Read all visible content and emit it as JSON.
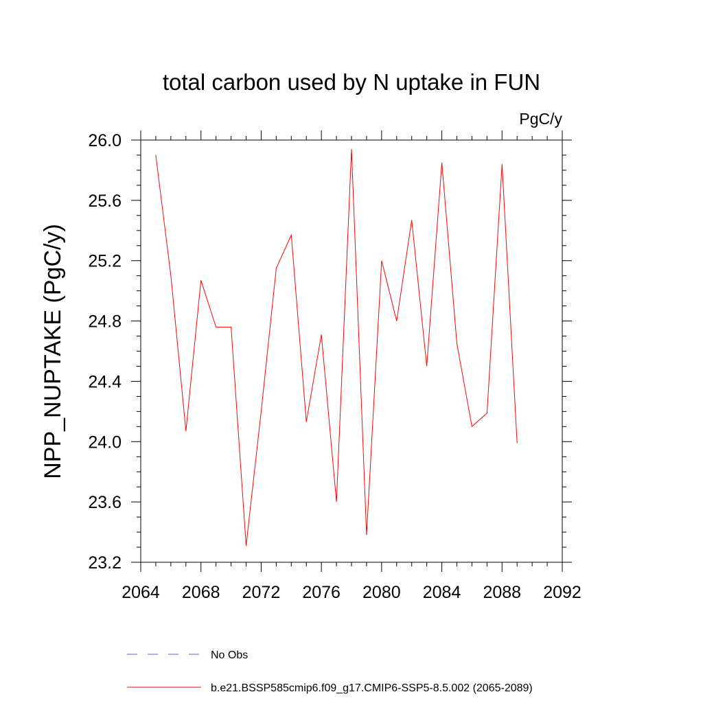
{
  "chart_data": {
    "type": "line",
    "title": "total carbon used by N uptake in FUN",
    "units_label": "PgC/y",
    "xlabel": "",
    "ylabel": "NPP_NUPTAKE  (PgC/y)",
    "xlim": [
      2064,
      2092
    ],
    "ylim": [
      23.2,
      26.0
    ],
    "x_ticks": [
      2064,
      2068,
      2072,
      2076,
      2080,
      2084,
      2088,
      2092
    ],
    "x_tick_labels": [
      "2064",
      "2068",
      "2072",
      "2076",
      "2080",
      "2084",
      "2088",
      "2092"
    ],
    "y_ticks": [
      23.2,
      23.6,
      24.0,
      24.4,
      24.8,
      25.2,
      25.6,
      26.0
    ],
    "y_tick_labels": [
      "23.2",
      "23.6",
      "24.0",
      "24.4",
      "24.8",
      "25.2",
      "25.6",
      "26.0"
    ],
    "grid": false,
    "legend_position": "bottom",
    "series": [
      {
        "name": "b.e21.BSSP585cmip6.f09_g17.CMIP6-SSP5-8.5.002 (2065-2089)",
        "color": "#ff0000",
        "style": "solid",
        "x": [
          2065,
          2066,
          2067,
          2068,
          2069,
          2070,
          2071,
          2072,
          2073,
          2074,
          2075,
          2076,
          2077,
          2078,
          2079,
          2080,
          2081,
          2082,
          2083,
          2084,
          2085,
          2086,
          2087,
          2088,
          2089
        ],
        "y": [
          25.9,
          25.1,
          24.07,
          25.07,
          24.76,
          24.76,
          23.31,
          24.2,
          25.15,
          25.37,
          24.13,
          24.71,
          23.6,
          25.94,
          23.38,
          25.2,
          24.8,
          25.47,
          24.5,
          25.85,
          24.65,
          24.1,
          24.19,
          25.84,
          23.99
        ]
      }
    ],
    "legend": [
      {
        "label": "No Obs",
        "color": "#6a5acd",
        "style": "dashed"
      },
      {
        "label": "b.e21.BSSP585cmip6.f09_g17.CMIP6-SSP5-8.5.002 (2065-2089)",
        "color": "#ff0000",
        "style": "solid"
      }
    ]
  }
}
